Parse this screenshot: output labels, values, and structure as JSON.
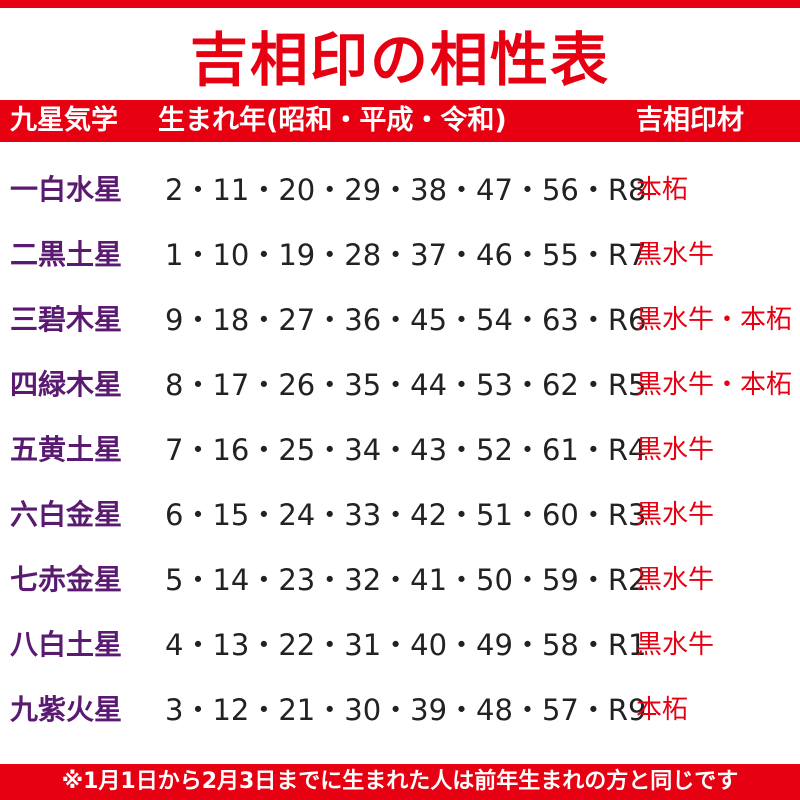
{
  "header": {
    "title": "吉相印の相性表"
  },
  "table": {
    "columns": [
      "九星気学",
      "生まれ年(昭和・平成・令和)",
      "吉相印材"
    ],
    "rows": [
      [
        "一白水星",
        "2・11・20・29・38・47・56・R8",
        "本柘"
      ],
      [
        "二黒土星",
        "1・10・19・28・37・46・55・R7",
        "黒水牛"
      ],
      [
        "三碧木星",
        "9・18・27・36・45・54・63・R6",
        "黒水牛・本柘"
      ],
      [
        "四緑木星",
        "8・17・26・35・44・53・62・R5",
        "黒水牛・本柘"
      ],
      [
        "五黄土星",
        "7・16・25・34・43・52・61・R4",
        "黒水牛"
      ],
      [
        "六白金星",
        "6・15・24・33・42・51・60・R3",
        "黒水牛"
      ],
      [
        "七赤金星",
        "5・14・23・32・41・50・59・R2",
        "黒水牛"
      ],
      [
        "八白土星",
        "4・13・22・31・40・49・58・R1",
        "黒水牛"
      ],
      [
        "九紫火星",
        "3・12・21・30・39・48・57・R9",
        "本柘"
      ]
    ]
  },
  "footer": {
    "note": "※1月1日から2月3日までに生まれた人は前年生まれの方と同じです"
  }
}
